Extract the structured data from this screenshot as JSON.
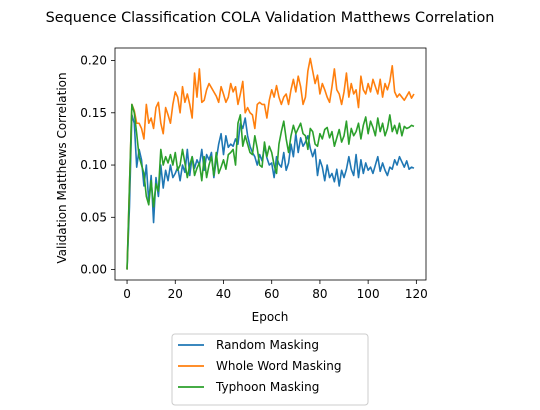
{
  "chart_data": {
    "type": "line",
    "title": "Sequence Classification COLA Validation Matthews Correlation",
    "xlabel": "Epoch",
    "ylabel": "Validation Matthews Correlation",
    "xlim": [
      -5,
      124
    ],
    "ylim": [
      -0.01,
      0.212
    ],
    "xticks": [
      0,
      20,
      40,
      60,
      80,
      100,
      120
    ],
    "yticks": [
      0.0,
      0.05,
      0.1,
      0.15,
      0.2
    ],
    "ytick_labels": [
      "0.00",
      "0.05",
      "0.10",
      "0.15",
      "0.20"
    ],
    "grid": false,
    "legend_position": "bottom-center",
    "series": [
      {
        "name": "Random Masking",
        "color": "#1f77b4",
        "values": [
          0.0,
          0.06,
          0.148,
          0.14,
          0.098,
          0.115,
          0.105,
          0.08,
          0.1,
          0.065,
          0.09,
          0.045,
          0.088,
          0.07,
          0.1,
          0.078,
          0.095,
          0.085,
          0.1,
          0.088,
          0.092,
          0.098,
          0.085,
          0.1,
          0.093,
          0.115,
          0.09,
          0.108,
          0.097,
          0.105,
          0.1,
          0.115,
          0.095,
          0.11,
          0.105,
          0.112,
          0.088,
          0.105,
          0.12,
          0.13,
          0.11,
          0.128,
          0.117,
          0.12,
          0.118,
          0.125,
          0.12,
          0.14,
          0.135,
          0.145,
          0.128,
          0.118,
          0.112,
          0.108,
          0.1,
          0.11,
          0.104,
          0.118,
          0.107,
          0.1,
          0.102,
          0.088,
          0.108,
          0.101,
          0.098,
          0.112,
          0.095,
          0.102,
          0.12,
          0.108,
          0.13,
          0.112,
          0.126,
          0.118,
          0.122,
          0.128,
          0.116,
          0.108,
          0.115,
          0.09,
          0.105,
          0.098,
          0.085,
          0.1,
          0.088,
          0.092,
          0.084,
          0.096,
          0.08,
          0.095,
          0.088,
          0.096,
          0.108,
          0.096,
          0.09,
          0.11,
          0.088,
          0.105,
          0.092,
          0.102,
          0.095,
          0.098,
          0.092,
          0.1,
          0.108,
          0.094,
          0.102,
          0.095,
          0.09,
          0.098,
          0.096,
          0.105,
          0.1,
          0.108,
          0.103,
          0.098,
          0.104,
          0.096,
          0.098,
          0.097
        ]
      },
      {
        "name": "Whole Word Masking",
        "color": "#ff7f0e",
        "values": [
          0.0,
          0.08,
          0.158,
          0.152,
          0.14,
          0.14,
          0.135,
          0.125,
          0.158,
          0.14,
          0.145,
          0.135,
          0.155,
          0.16,
          0.14,
          0.13,
          0.155,
          0.148,
          0.14,
          0.158,
          0.17,
          0.165,
          0.15,
          0.175,
          0.16,
          0.168,
          0.158,
          0.145,
          0.188,
          0.165,
          0.192,
          0.16,
          0.162,
          0.172,
          0.178,
          0.174,
          0.17,
          0.166,
          0.16,
          0.175,
          0.168,
          0.16,
          0.165,
          0.178,
          0.17,
          0.175,
          0.158,
          0.168,
          0.18,
          0.15,
          0.155,
          0.15,
          0.148,
          0.135,
          0.158,
          0.16,
          0.158,
          0.158,
          0.145,
          0.162,
          0.172,
          0.165,
          0.176,
          0.165,
          0.158,
          0.165,
          0.168,
          0.158,
          0.172,
          0.182,
          0.17,
          0.185,
          0.175,
          0.158,
          0.165,
          0.19,
          0.202,
          0.19,
          0.178,
          0.186,
          0.168,
          0.178,
          0.172,
          0.165,
          0.16,
          0.175,
          0.192,
          0.172,
          0.168,
          0.158,
          0.17,
          0.188,
          0.165,
          0.178,
          0.168,
          0.172,
          0.155,
          0.185,
          0.172,
          0.168,
          0.178,
          0.17,
          0.182,
          0.175,
          0.168,
          0.182,
          0.165,
          0.178,
          0.172,
          0.18,
          0.195,
          0.17,
          0.165,
          0.168,
          0.165,
          0.162,
          0.166,
          0.17,
          0.164,
          0.168
        ]
      },
      {
        "name": "Typhoon Masking",
        "color": "#2ca02c",
        "values": [
          0.0,
          0.08,
          0.158,
          0.15,
          0.13,
          0.108,
          0.1,
          0.092,
          0.07,
          0.062,
          0.085,
          0.06,
          0.082,
          0.075,
          0.115,
          0.1,
          0.108,
          0.102,
          0.11,
          0.1,
          0.112,
          0.095,
          0.1,
          0.115,
          0.102,
          0.088,
          0.1,
          0.108,
          0.09,
          0.097,
          0.102,
          0.085,
          0.108,
          0.088,
          0.1,
          0.108,
          0.09,
          0.112,
          0.092,
          0.098,
          0.105,
          0.096,
          0.11,
          0.112,
          0.115,
          0.1,
          0.14,
          0.148,
          0.118,
          0.128,
          0.12,
          0.112,
          0.11,
          0.128,
          0.116,
          0.1,
          0.098,
          0.122,
          0.108,
          0.118,
          0.112,
          0.1,
          0.092,
          0.12,
          0.132,
          0.142,
          0.125,
          0.112,
          0.128,
          0.138,
          0.13,
          0.135,
          0.14,
          0.13,
          0.128,
          0.115,
          0.135,
          0.132,
          0.12,
          0.118,
          0.13,
          0.125,
          0.134,
          0.136,
          0.126,
          0.132,
          0.118,
          0.126,
          0.134,
          0.122,
          0.128,
          0.142,
          0.12,
          0.135,
          0.128,
          0.132,
          0.14,
          0.125,
          0.138,
          0.146,
          0.13,
          0.142,
          0.136,
          0.128,
          0.145,
          0.132,
          0.14,
          0.128,
          0.135,
          0.148,
          0.132,
          0.138,
          0.13,
          0.14,
          0.128,
          0.137,
          0.135,
          0.136,
          0.138,
          0.137
        ]
      }
    ]
  }
}
